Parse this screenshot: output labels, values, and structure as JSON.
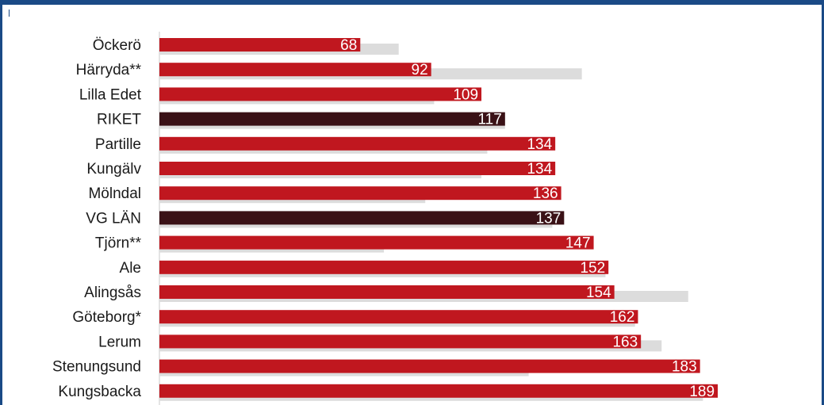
{
  "colors": {
    "bar": "#c0171f",
    "bar_highlight": "#3a1116",
    "bar_secondary": "#dcdcdc",
    "frame": "#1a4a86",
    "axis": "#c8c8c8"
  },
  "chart_data": {
    "type": "bar",
    "orientation": "horizontal",
    "categories": [
      "Öckerö",
      "Härryda**",
      "Lilla Edet",
      "RIKET",
      "Partille",
      "Kungälv",
      "Mölndal",
      "VG LÄN",
      "Tjörn**",
      "Ale",
      "Alingsås",
      "Göteborg*",
      "Lerum",
      "Stenungsund",
      "Kungsbacka"
    ],
    "highlight": [
      "RIKET",
      "VG LÄN"
    ],
    "series": [
      {
        "values": [
          68,
          92,
          109,
          117,
          134,
          134,
          136,
          137,
          147,
          152,
          154,
          162,
          163,
          183,
          189
        ],
        "labels": [
          "68",
          "92",
          "109",
          "117",
          "134",
          "134",
          "136",
          "137",
          "147",
          "152",
          "154",
          "162",
          "163",
          "183",
          "189"
        ],
        "color": "#c0171f"
      },
      {
        "values": [
          81,
          143,
          93,
          117,
          111,
          109,
          90,
          133,
          76,
          151,
          179,
          161,
          170,
          125,
          184
        ],
        "color": "#dcdcdc"
      }
    ],
    "xlim": [
      0,
      200
    ],
    "grid": false,
    "legend": "none"
  }
}
